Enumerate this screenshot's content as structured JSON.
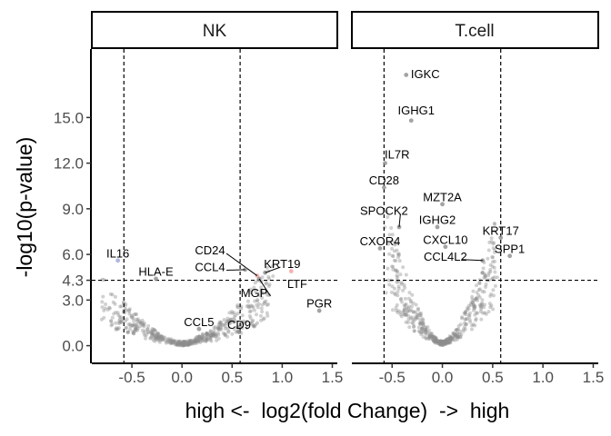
{
  "chart_data": {
    "type": "scatter",
    "xlabel": "high <-  log2(fold Change)  ->  high",
    "ylabel": "-log10(p-value)",
    "xlim": [
      -0.9,
      1.55
    ],
    "ylim": [
      -1.1,
      19.5
    ],
    "xticks": [
      -0.5,
      0.0,
      0.5,
      1.0,
      1.5
    ],
    "xtick_labels": [
      "-0.5",
      "0.0",
      "0.5",
      "1.0",
      "1.5"
    ],
    "yticks": [
      0.0,
      3.0,
      4.3,
      6.0,
      9.0,
      12.0,
      15.0
    ],
    "ytick_labels": [
      "0.0",
      "3.0",
      "4.3",
      "6.0",
      "9.0",
      "12.0",
      "15.0"
    ],
    "thresholds": {
      "fc": [
        -0.58,
        0.58
      ],
      "p": 4.3
    },
    "grid": false,
    "colors": {
      "point": "#8c8c8c",
      "highlight_up": "#f2a0a0",
      "highlight_down": "#9aa6d6",
      "dashed": "#000000"
    },
    "panels": [
      {
        "name": "NK",
        "labels": [
          {
            "gene": "IL16",
            "x": -0.64,
            "y": 6.1,
            "px": -0.64,
            "py": 5.6,
            "color": "down"
          },
          {
            "gene": "HLA-E",
            "x": -0.26,
            "y": 4.9
          },
          {
            "gene": "CD24",
            "x": 0.28,
            "y": 6.3,
            "px": 0.75,
            "py": 4.6,
            "leader": true,
            "color": "up"
          },
          {
            "gene": "CCL4",
            "x": 0.28,
            "y": 5.2,
            "px": 0.63,
            "py": 5.0,
            "leader": true
          },
          {
            "gene": "KRT19",
            "x": 1.0,
            "y": 5.4,
            "px": 0.83,
            "py": 4.8,
            "leader": true
          },
          {
            "gene": "MGP",
            "x": 0.72,
            "y": 3.5,
            "px": 0.77,
            "py": 4.4,
            "leader": true
          },
          {
            "gene": "LTF",
            "x": 1.15,
            "y": 4.1,
            "px": 1.09,
            "py": 4.9,
            "color": "up"
          },
          {
            "gene": "PGR",
            "x": 1.37,
            "y": 2.8
          },
          {
            "gene": "CCL5",
            "x": 0.17,
            "y": 1.6
          },
          {
            "gene": "CD9",
            "x": 0.57,
            "y": 1.4
          }
        ]
      },
      {
        "name": "T.cell",
        "labels": [
          {
            "gene": "IGKC",
            "x": -0.17,
            "y": 17.9,
            "px": -0.36,
            "py": 17.8
          },
          {
            "gene": "IGHG1",
            "x": -0.26,
            "y": 15.5,
            "px": -0.31,
            "py": 14.8
          },
          {
            "gene": "IL7R",
            "x": -0.45,
            "y": 12.6,
            "px": -0.57,
            "py": 12.0
          },
          {
            "gene": "CD28",
            "x": -0.58,
            "y": 10.9
          },
          {
            "gene": "MZT2A",
            "x": 0.0,
            "y": 9.8
          },
          {
            "gene": "SPOCK2",
            "x": -0.58,
            "y": 8.9,
            "px": -0.43,
            "py": 7.8,
            "leader": true
          },
          {
            "gene": "IGHG2",
            "x": -0.05,
            "y": 8.3
          },
          {
            "gene": "KRT17",
            "x": 0.58,
            "y": 7.6
          },
          {
            "gene": "CXOR4",
            "x": -0.62,
            "y": 6.9
          },
          {
            "gene": "CXCL10",
            "x": 0.03,
            "y": 7.0
          },
          {
            "gene": "SPP1",
            "x": 0.67,
            "y": 6.4
          },
          {
            "gene": "CCL4L2",
            "x": 0.03,
            "y": 5.9,
            "px": 0.4,
            "py": 5.6,
            "leader": true
          }
        ]
      }
    ]
  }
}
